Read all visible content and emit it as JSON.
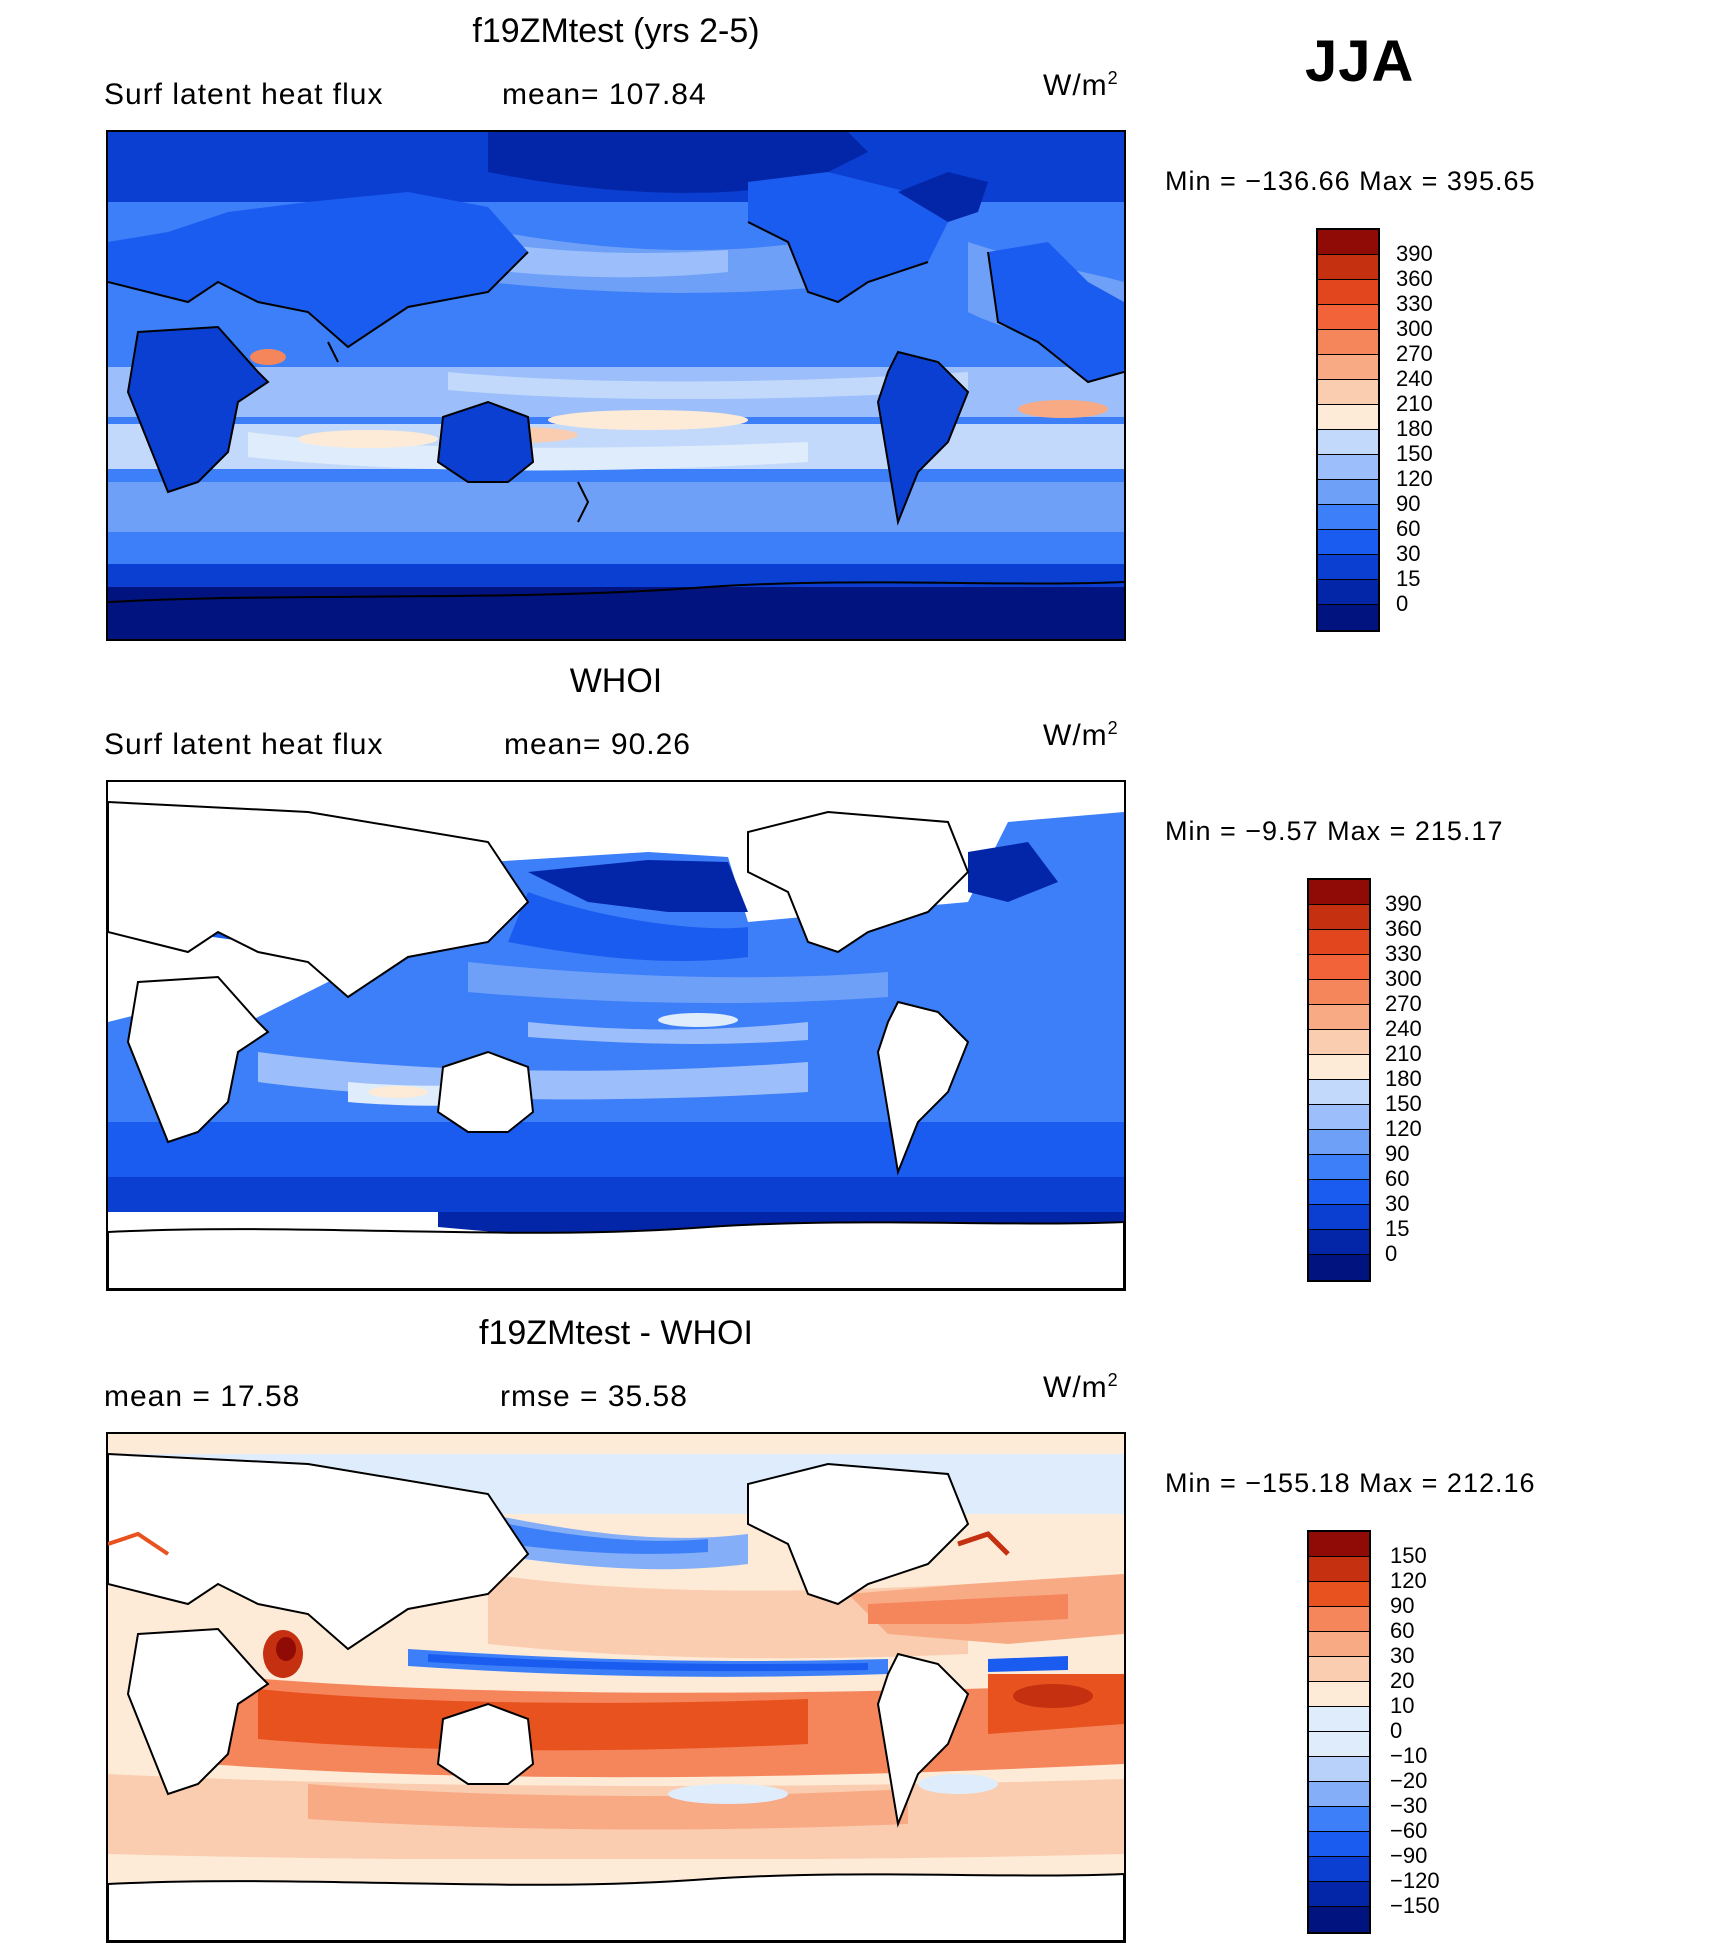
{
  "season": "JJA",
  "colors": {
    "fluxScale": [
      "#00137f",
      "#0326a8",
      "#0a3fd2",
      "#1b5cf0",
      "#3d7ff8",
      "#6ea0f8",
      "#9cbefa",
      "#c2d9fb",
      "#deecfc",
      "#fdebd8",
      "#fbcdb0",
      "#f8aa85",
      "#f5865c",
      "#f2633a",
      "#e1461f",
      "#c43010",
      "#900a06"
    ],
    "diffScale": [
      "#00137f",
      "#0326a8",
      "#0a3fd2",
      "#1b5cf0",
      "#3d7ff8",
      "#84aef8",
      "#b7d1fb",
      "#dfecfc",
      "#fdebd8",
      "#fbcdb0",
      "#f8aa85",
      "#f5865c",
      "#e8521f",
      "#c43010",
      "#900a06"
    ],
    "landFill": "#ffffff",
    "border": "#000000"
  },
  "panels": [
    {
      "title": "f19ZMtest (yrs 2-5)",
      "left_label": "Surf  latent  heat  flux",
      "mean_label": "mean=  107.84",
      "units": "W/m",
      "units_exp": "2",
      "min_label": "Min  =  −136.66",
      "max_label": "Max  =  395.65",
      "colorbar_ticks": [
        "390",
        "360",
        "330",
        "300",
        "270",
        "240",
        "210",
        "180",
        "150",
        "120",
        "90",
        "60",
        "30",
        "15",
        "0"
      ]
    },
    {
      "title": "WHOI",
      "left_label": "Surf  latent  heat  flux",
      "mean_label": "mean=   90.26",
      "units": "W/m",
      "units_exp": "2",
      "min_label": "Min  =    −9.57",
      "max_label": "Max  =  215.17",
      "colorbar_ticks": [
        "390",
        "360",
        "330",
        "300",
        "270",
        "240",
        "210",
        "180",
        "150",
        "120",
        "90",
        "60",
        "30",
        "15",
        "0"
      ]
    },
    {
      "title": "f19ZMtest - WHOI",
      "left_label": "mean  =     17.58",
      "mean_label": "rmse  =     35.58",
      "units": "W/m",
      "units_exp": "2",
      "min_label": "Min  =  −155.18",
      "max_label": "Max  =  212.16",
      "colorbar_ticks": [
        "150",
        "120",
        "90",
        "60",
        "30",
        "20",
        "10",
        "0",
        "−10",
        "−20",
        "−30",
        "−60",
        "−90",
        "−120",
        "−150"
      ]
    }
  ]
}
